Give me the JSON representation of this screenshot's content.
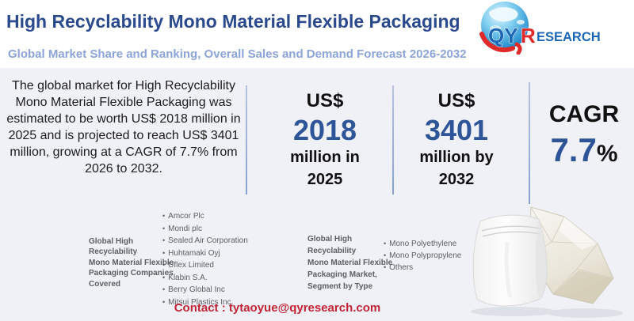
{
  "header": {
    "title": "High Recyclability Mono Material Flexible Packaging",
    "subtitle": "Global Market Share and Ranking, Overall Sales and Demand Forecast 2026-2032",
    "logo": {
      "qy": "QY",
      "r": "R",
      "esearch": "ESEARCH"
    }
  },
  "summary": {
    "text": "The global market for High Recyclability Mono Material Flexible Packaging was estimated to be worth US$ 2018 million in 2025 and is projected to reach US$ 3401 million, growing at a CAGR of 7.7% from 2026 to 2032."
  },
  "stats": {
    "stat_2025": {
      "currency": "US$",
      "value": "2018",
      "caption": "million in\n2025"
    },
    "stat_2032": {
      "currency": "US$",
      "value": "3401",
      "caption": "million by\n2032"
    },
    "cagr": {
      "label": "CAGR",
      "value": "7.7",
      "unit": "%"
    }
  },
  "companies": {
    "label": "Global High Recyclability\nMono Material Flexible\nPackaging Companies\nCovered",
    "items": [
      "Amcor Plc",
      "Mondi plc",
      "Sealed Air Corporation",
      "Huhtamaki Oyj",
      "Uflex Limited",
      "Klabin S.A.",
      "Berry Global Inc",
      "Mitsui Plastics Inc."
    ]
  },
  "segments": {
    "label": "Global High Recyclability\nMono Material Flexible\nPackaging Market,\nSegment by Type",
    "items": [
      "Mono Polyethylene",
      "Mono Polypropylene",
      "Others"
    ]
  },
  "contact": {
    "text": "Contact : tytaoyue@qyresearch.com"
  },
  "icons": {
    "bullet": "•"
  },
  "colors": {
    "title_navy": "#2b4a8d",
    "subtitle_periwinkle": "#8da4d9",
    "stat_blue": "#2e5597",
    "contact_red": "#c22335",
    "panel_bg": "#eff1f6",
    "logo_blue": "#1c67b5",
    "logo_red": "#e02a2a",
    "label_gray": "#5a5f66"
  }
}
